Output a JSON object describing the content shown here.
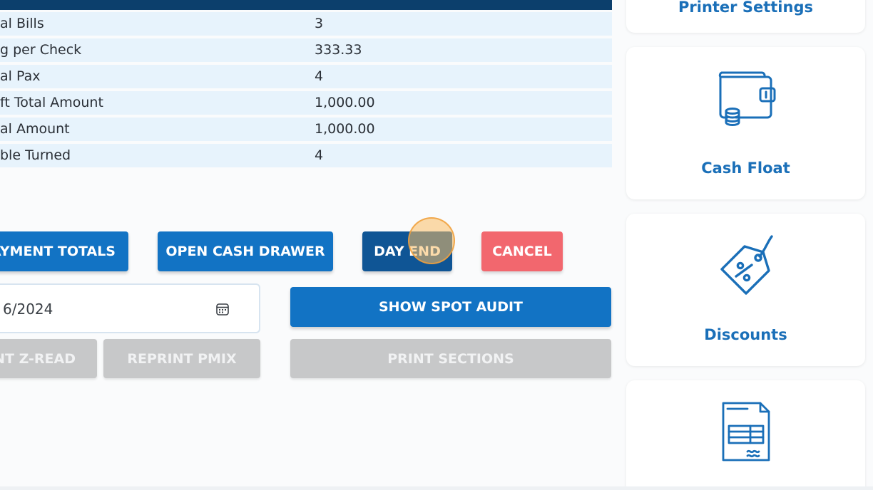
{
  "summary_rows": [
    {
      "label": "al Bills",
      "value": "3"
    },
    {
      "label": "g per Check",
      "value": "333.33"
    },
    {
      "label": "al Pax",
      "value": "4"
    },
    {
      "label": "ft Total Amount",
      "value": "1,000.00"
    },
    {
      "label": "al Amount",
      "value": "1,000.00"
    },
    {
      "label": "ble Turned",
      "value": "4"
    }
  ],
  "actions": {
    "payment_totals": "AYMENT TOTALS",
    "open_cash_drawer": "OPEN CASH DRAWER",
    "day_end": "DAY END",
    "cancel": "CANCEL",
    "show_spot_audit": "SHOW SPOT AUDIT",
    "reprint_zread": "NT Z-READ",
    "reprint_pmix": "REPRINT PMIX",
    "print_sections": "PRINT SECTIONS"
  },
  "date_field": {
    "value": "6/2024"
  },
  "side_menu": {
    "printer_settings": "Printer Settings",
    "cash_float": "Cash Float",
    "discounts": "Discounts"
  },
  "icons": {
    "calendar": "calendar-icon",
    "wallet": "wallet-coins-icon",
    "discount_tag": "discount-tag-icon",
    "receipt": "receipt-icon"
  },
  "colors": {
    "primary_button": "#1273c4",
    "pressed_button": "#0f5595",
    "cancel_button": "#f2676e",
    "disabled_button": "#c7c8c9",
    "table_header": "#0c3f6c",
    "table_row": "#e7f3fc",
    "card_label": "#1a6fb8"
  }
}
